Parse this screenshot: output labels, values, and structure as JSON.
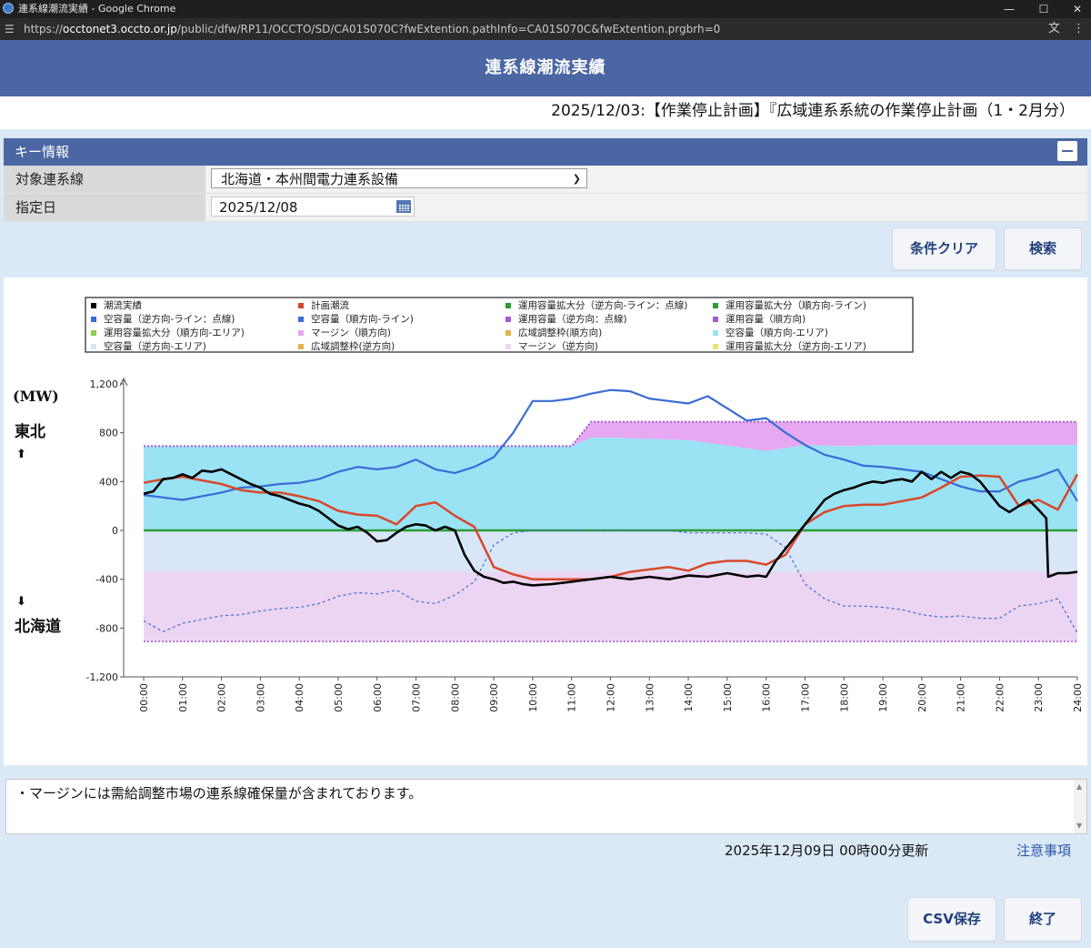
{
  "window": {
    "title": "連系線潮流実績 - Google Chrome",
    "url_host": "occtonet3.occto.or.jp",
    "url_prefix": "https://",
    "url_path": "/public/dfw/RP11/OCCTO/SD/CA01S070C?fwExtention.pathInfo=CA01S070C&fwExtention.prgbrh=0"
  },
  "header": {
    "title": "連系線潮流実績"
  },
  "notice": "2025/12/03:【作業停止計画】『広域連系系統の作業停止計画（1・2月分）",
  "key_info": {
    "title": "キー情報",
    "line_label": "対象連系線",
    "line_value": "北海道・本州間電力連系設備",
    "date_label": "指定日",
    "date_value": "2025/12/08"
  },
  "buttons": {
    "clear": "条件クリア",
    "search": "検索",
    "csv": "CSV保存",
    "exit": "終了"
  },
  "note": "・マージンには需給調整市場の連系線確保量が含まれております。",
  "updated": "2025年12月09日 00時00分更新",
  "caution_link": "注意事項",
  "colors": {
    "header": "#4a66a3",
    "background": "#dbe9f7",
    "flow": "#000000",
    "plan": "#d9472b",
    "free_capacity": "#3a6bd6",
    "op_capacity_forward": "#a35ad1",
    "expansion": "#2e9b33",
    "free_area_forward": "#99e3f4",
    "free_area_reverse": "#d8e6f8",
    "margin_reverse": "#ecd5f2",
    "margin_forward": "#e6a8f0"
  },
  "chart_data": {
    "type": "line",
    "y_unit": "(MW)",
    "y_top_label": "東北",
    "y_bottom_label": "北海道",
    "ylim": [
      -1200,
      1200
    ],
    "yticks": [
      "1,200",
      "800",
      "400",
      "0",
      "-400",
      "-800",
      "-1,200"
    ],
    "ytick_values": [
      1200,
      800,
      400,
      0,
      -400,
      -800,
      -1200
    ],
    "xlim": [
      0,
      24
    ],
    "xticks": [
      "00:00",
      "01:00",
      "02:00",
      "03:00",
      "04:00",
      "05:00",
      "06:00",
      "07:00",
      "08:00",
      "09:00",
      "10:00",
      "11:00",
      "12:00",
      "13:00",
      "14:00",
      "15:00",
      "16:00",
      "17:00",
      "18:00",
      "19:00",
      "20:00",
      "21:00",
      "22:00",
      "23:00",
      "24:00"
    ],
    "grid": false,
    "legend_position": "top",
    "legend": [
      {
        "label": "潮流実績",
        "color": "#000000"
      },
      {
        "label": "計画潮流",
        "color": "#d9472b"
      },
      {
        "label": "運用容量拡大分（逆方向-ライン：点線)",
        "color": "#2e9b33"
      },
      {
        "label": "運用容量拡大分（順方向-ライン)",
        "color": "#2e9b33"
      },
      {
        "label": "空容量（逆方向-ライン：点線)",
        "color": "#3a6bd6"
      },
      {
        "label": "空容量（順方向-ライン)",
        "color": "#3a6bd6"
      },
      {
        "label": "運用容量（逆方向：点線)",
        "color": "#a35ad1"
      },
      {
        "label": "運用容量（順方向)",
        "color": "#a35ad1"
      },
      {
        "label": "運用容量拡大分（順方向-エリア)",
        "color": "#8bd14a"
      },
      {
        "label": "マージン（順方向)",
        "color": "#e6a8f0"
      },
      {
        "label": "広域調整枠(順方向)",
        "color": "#e8b34a"
      },
      {
        "label": "空容量（順方向-エリア)",
        "color": "#99e3f4"
      },
      {
        "label": "空容量（逆方向-エリア)",
        "color": "#d8e6f8"
      },
      {
        "label": "広域調整枠(逆方向)",
        "color": "#e8b34a"
      },
      {
        "label": "マージン（逆方向)",
        "color": "#ecd5f2"
      },
      {
        "label": "運用容量拡大分（逆方向-エリア)",
        "color": "#e8e86a"
      }
    ],
    "series": [
      {
        "name": "潮流実績",
        "x": [
          0,
          0.25,
          0.5,
          0.75,
          1,
          1.25,
          1.5,
          1.75,
          2,
          2.25,
          2.5,
          2.75,
          3,
          3.25,
          3.5,
          3.75,
          4,
          4.25,
          4.5,
          4.75,
          5,
          5.25,
          5.5,
          5.75,
          6,
          6.25,
          6.5,
          6.75,
          7,
          7.25,
          7.5,
          7.75,
          8,
          8.25,
          8.5,
          8.75,
          9,
          9.25,
          9.5,
          9.75,
          10,
          10.5,
          11,
          11.5,
          12,
          12.5,
          13,
          13.5,
          14,
          14.5,
          15,
          15.5,
          15.8,
          16,
          16.25,
          16.5,
          16.75,
          17,
          17.25,
          17.5,
          17.75,
          18,
          18.25,
          18.5,
          18.75,
          19,
          19.25,
          19.5,
          19.75,
          20,
          20.25,
          20.5,
          20.75,
          21,
          21.25,
          21.5,
          21.75,
          22,
          22.25,
          22.5,
          22.75,
          23,
          23.2,
          23.25,
          23.5,
          23.75,
          24
        ],
        "y": [
          300,
          320,
          420,
          430,
          460,
          430,
          490,
          480,
          500,
          460,
          420,
          380,
          350,
          300,
          280,
          250,
          220,
          200,
          160,
          100,
          40,
          10,
          30,
          -20,
          -90,
          -80,
          -20,
          30,
          50,
          40,
          0,
          30,
          0,
          -200,
          -330,
          -380,
          -400,
          -430,
          -420,
          -440,
          -450,
          -440,
          -420,
          -400,
          -380,
          -400,
          -380,
          -400,
          -370,
          -380,
          -350,
          -380,
          -370,
          -380,
          -250,
          -150,
          -50,
          50,
          150,
          250,
          300,
          330,
          350,
          380,
          400,
          390,
          410,
          420,
          400,
          480,
          420,
          480,
          430,
          480,
          460,
          400,
          300,
          200,
          150,
          200,
          250,
          170,
          100,
          -380,
          -350,
          -350,
          -340
        ]
      },
      {
        "name": "計画潮流",
        "x": [
          0,
          0.5,
          1,
          1.5,
          2,
          2.5,
          3,
          3.5,
          4,
          4.5,
          5,
          5.5,
          6,
          6.5,
          7,
          7.5,
          8,
          8.5,
          9,
          9.5,
          10,
          10.5,
          11,
          11.5,
          12,
          12.5,
          13,
          13.5,
          14,
          14.5,
          15,
          15.5,
          16,
          16.5,
          17,
          17.5,
          18,
          18.5,
          19,
          19.5,
          20,
          20.5,
          21,
          21.5,
          22,
          22.5,
          23,
          23.5,
          24
        ],
        "y": [
          390,
          420,
          440,
          410,
          380,
          330,
          310,
          310,
          280,
          240,
          160,
          130,
          120,
          50,
          200,
          230,
          120,
          30,
          -300,
          -360,
          -400,
          -400,
          -400,
          -400,
          -380,
          -340,
          -320,
          -300,
          -330,
          -270,
          -250,
          -250,
          -280,
          -200,
          50,
          150,
          200,
          210,
          210,
          240,
          270,
          350,
          440,
          450,
          440,
          200,
          250,
          170,
          460
        ]
      },
      {
        "name": "空容量（順方向-ライン)",
        "x": [
          0,
          0.5,
          1,
          1.5,
          2,
          2.5,
          3,
          3.5,
          4,
          4.5,
          5,
          5.5,
          6,
          6.5,
          7,
          7.5,
          8,
          8.5,
          9,
          9.5,
          10,
          10.5,
          11,
          11.5,
          12,
          12.5,
          13,
          13.5,
          14,
          14.5,
          15,
          15.5,
          16,
          16.5,
          17,
          17.5,
          18,
          18.5,
          19,
          19.5,
          20,
          20.5,
          21,
          21.5,
          22,
          22.5,
          23,
          23.5,
          24
        ],
        "y": [
          290,
          270,
          250,
          280,
          310,
          350,
          360,
          380,
          390,
          420,
          480,
          520,
          500,
          520,
          580,
          500,
          470,
          520,
          600,
          800,
          1060,
          1060,
          1080,
          1120,
          1150,
          1140,
          1080,
          1060,
          1040,
          1100,
          1000,
          900,
          920,
          800,
          700,
          620,
          580,
          530,
          520,
          500,
          480,
          420,
          360,
          320,
          320,
          400,
          440,
          500,
          240
        ]
      },
      {
        "name": "空容量（逆方向-ライン：点線)",
        "x": [
          0,
          0.5,
          1,
          1.5,
          2,
          2.5,
          3,
          3.5,
          4,
          4.5,
          5,
          5.5,
          6,
          6.5,
          7,
          7.5,
          8,
          8.5,
          9,
          9.5,
          10,
          10.5,
          11,
          11.5,
          12,
          12.5,
          13,
          13.5,
          14,
          14.5,
          15,
          15.5,
          16,
          16.5,
          17,
          17.5,
          18,
          18.5,
          19,
          19.5,
          20,
          20.5,
          21,
          21.5,
          22,
          22.5,
          23,
          23.5,
          24
        ],
        "y": [
          -740,
          -830,
          -760,
          -730,
          -700,
          -690,
          -660,
          -640,
          -630,
          -600,
          -540,
          -510,
          -520,
          -490,
          -580,
          -600,
          -530,
          -420,
          -120,
          -20,
          0,
          0,
          0,
          0,
          0,
          0,
          0,
          0,
          -20,
          -20,
          -20,
          -20,
          -30,
          -140,
          -440,
          -560,
          -620,
          -620,
          -630,
          -650,
          -690,
          -710,
          -700,
          -720,
          -720,
          -620,
          -600,
          -560,
          -840
        ]
      },
      {
        "name": "運用容量（順方向)",
        "x": [
          0,
          11,
          11.5,
          24
        ],
        "y": [
          690,
          690,
          890,
          890
        ]
      },
      {
        "name": "運用容量（逆方向：点線)",
        "x": [
          0,
          24
        ],
        "y": [
          -910,
          -910
        ]
      },
      {
        "name": "運用容量拡大分（順方向-ライン)",
        "x": [
          0,
          24
        ],
        "y": [
          0,
          0
        ]
      }
    ],
    "area_bands": [
      {
        "name": "空容量（順方向-エリア)",
        "x": [
          0,
          11,
          11.5,
          12,
          14,
          16,
          17,
          18,
          19,
          20,
          21,
          22,
          23,
          24
        ],
        "lower": [
          0,
          0,
          0,
          0,
          0,
          0,
          0,
          0,
          0,
          0,
          0,
          0,
          0,
          0
        ],
        "upper": [
          690,
          690,
          760,
          760,
          740,
          650,
          700,
          690,
          700,
          700,
          700,
          700,
          700,
          700
        ]
      },
      {
        "name": "マージン（順方向)",
        "x": [
          0,
          11,
          11.5,
          12,
          14,
          16,
          17,
          18,
          19,
          20,
          21,
          22,
          23,
          24
        ],
        "lower": [
          690,
          690,
          760,
          760,
          740,
          650,
          700,
          690,
          700,
          700,
          700,
          700,
          700,
          700
        ],
        "upper": [
          690,
          690,
          890,
          890,
          890,
          890,
          890,
          890,
          890,
          890,
          890,
          890,
          890,
          890
        ]
      },
      {
        "name": "空容量（逆方向-エリア)",
        "x": [
          0,
          24
        ],
        "lower": [
          -340,
          -340
        ],
        "upper": [
          0,
          0
        ]
      },
      {
        "name": "マージン（逆方向)",
        "x": [
          0,
          24
        ],
        "lower": [
          -910,
          -910
        ],
        "upper": [
          -340,
          -340
        ]
      }
    ]
  }
}
